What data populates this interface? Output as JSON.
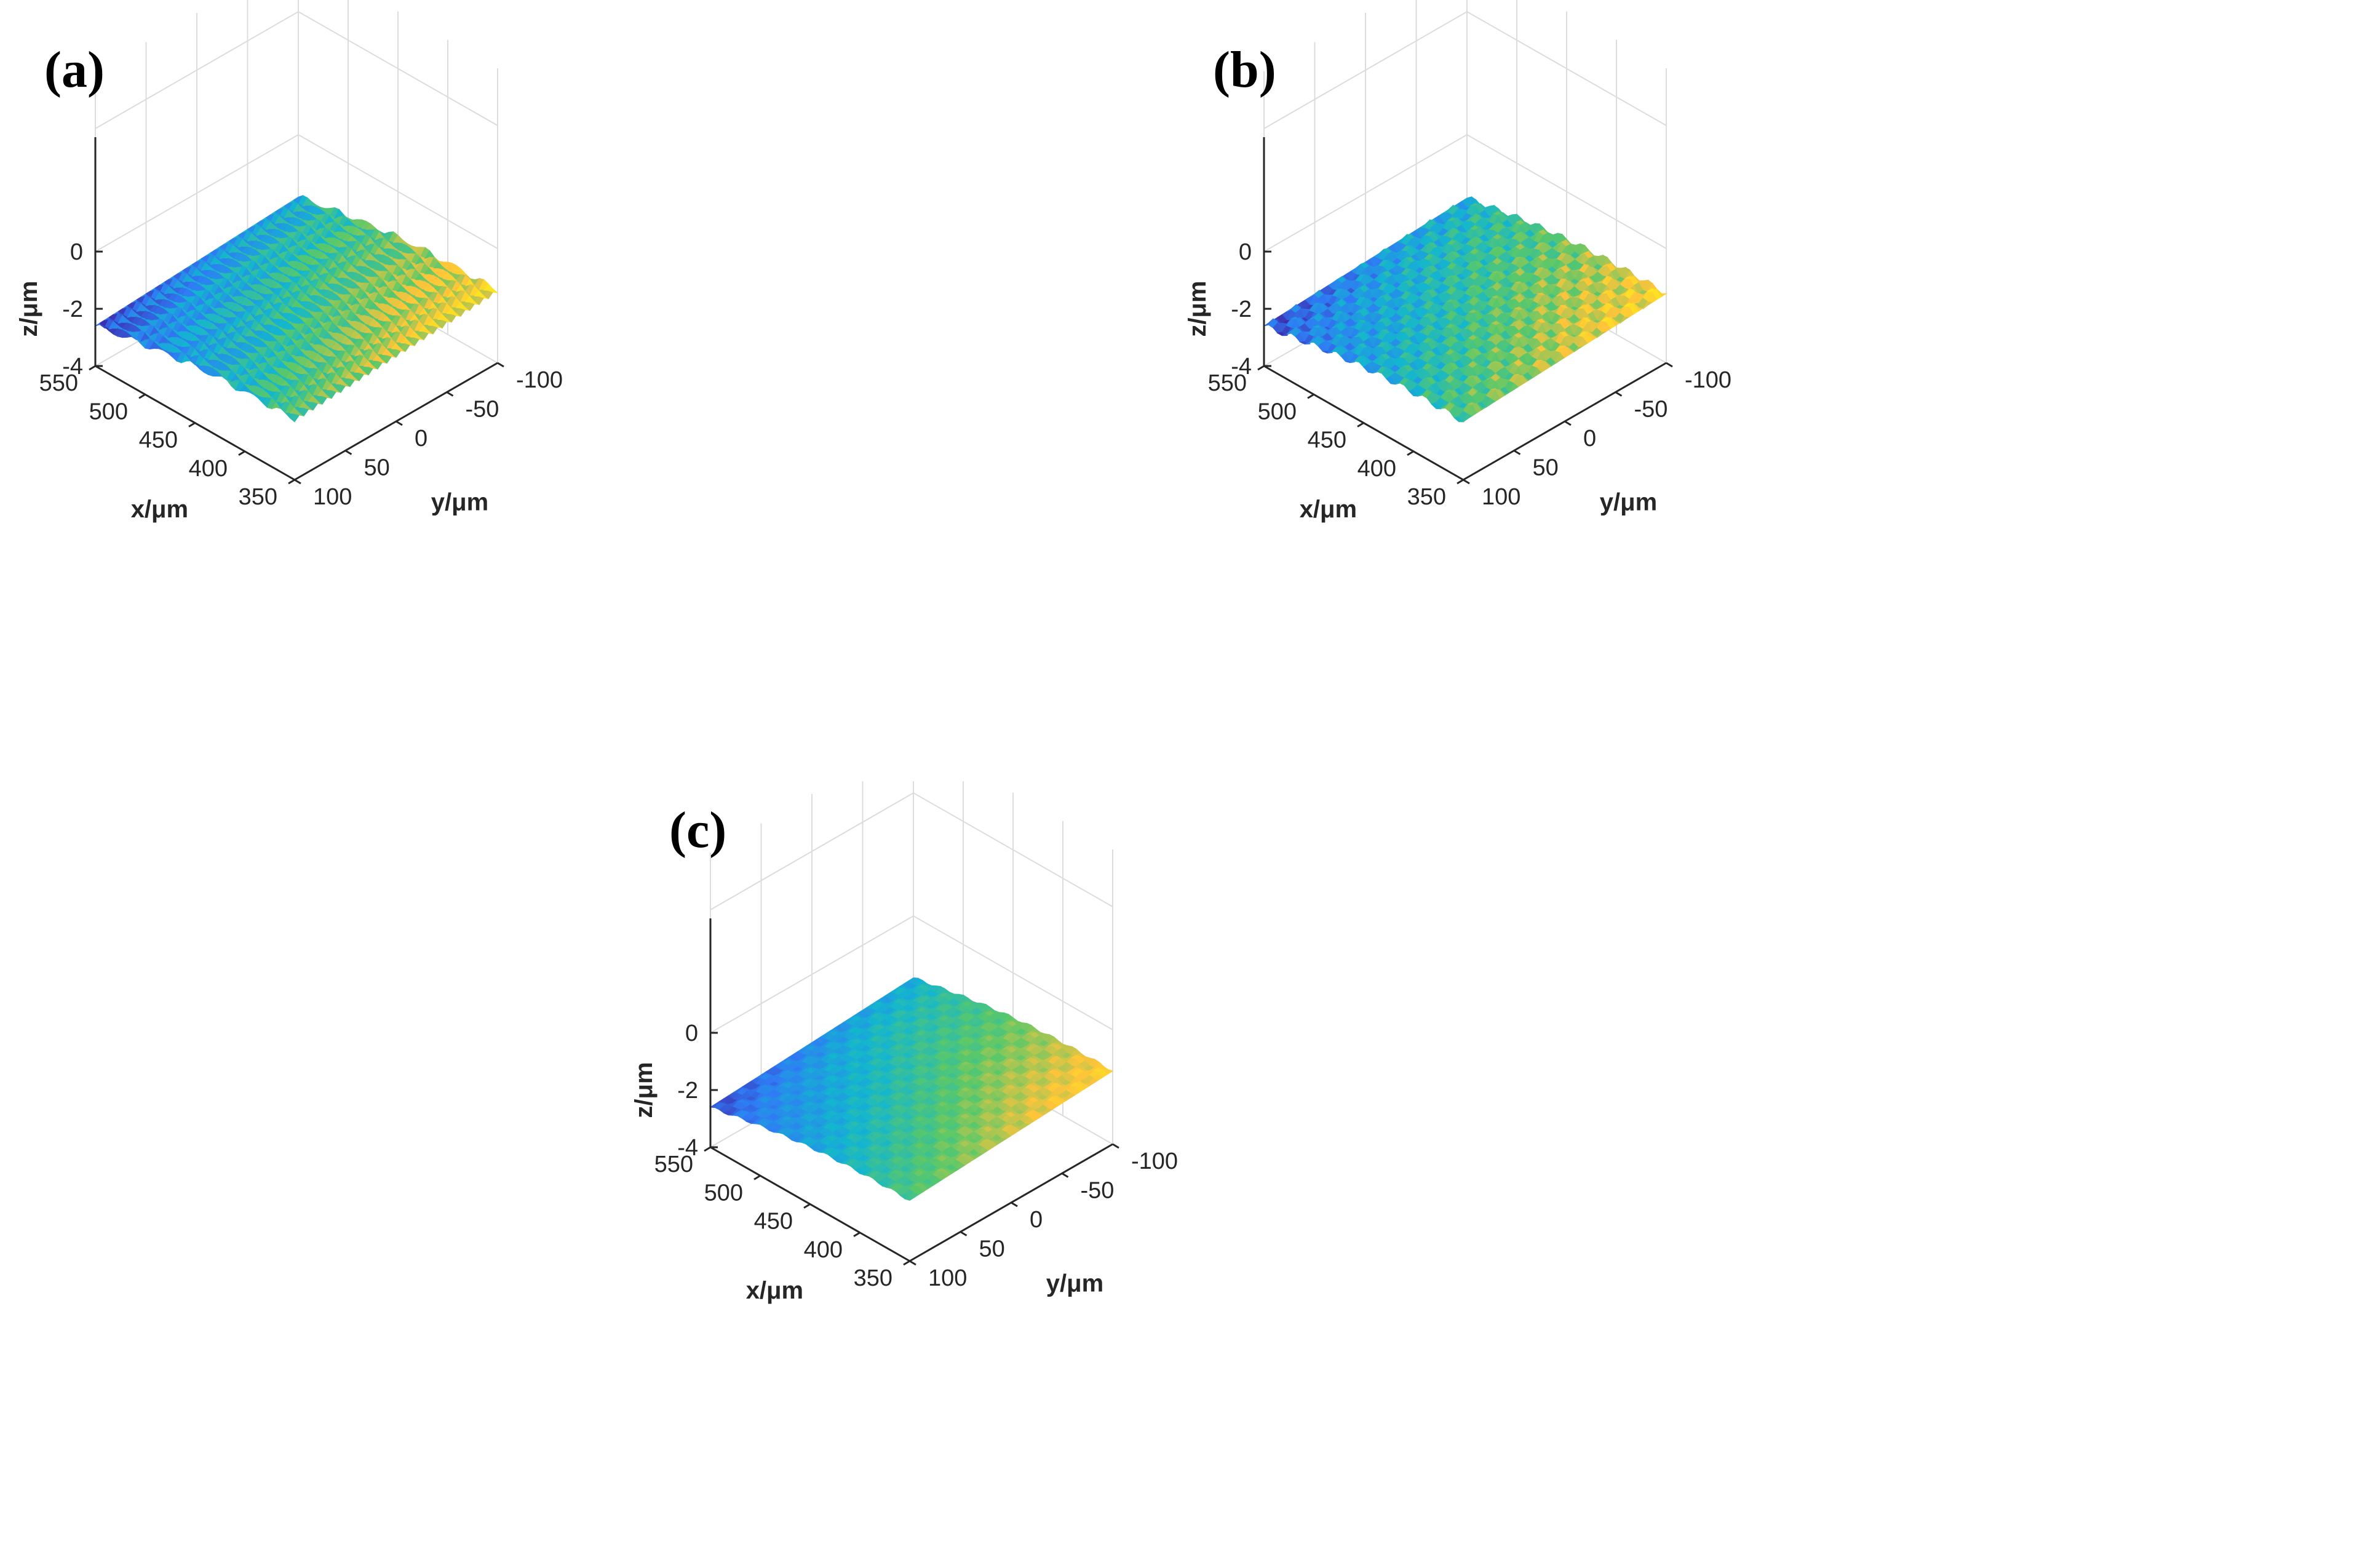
{
  "chart_data": [
    {
      "panel": "(a)",
      "type": "surface",
      "xlabel": "x/μm",
      "ylabel": "y/μm",
      "zlabel": "z/μm",
      "xlim": [
        350,
        550
      ],
      "ylim": [
        -100,
        100
      ],
      "zlim": [
        -4,
        0
      ],
      "xticks": [
        "350",
        "400",
        "450",
        "500",
        "550"
      ],
      "yticks": [
        "100",
        "50",
        "0",
        "-50",
        "-100"
      ],
      "zticks": [
        "0",
        "-2",
        "-4"
      ],
      "grid": true,
      "colormap": "parula",
      "texture": "sinusoidal ridges running along y, wavy along x",
      "wave_amplitude": 0.12,
      "bump_amplitude": 0.0,
      "tilt": 1.2,
      "ripple": 0.25,
      "colors": [
        "#3e26a8",
        "#2f7bf5",
        "#13b6cf",
        "#5ac869",
        "#ffc43a",
        "#f9fb0e"
      ]
    },
    {
      "panel": "(b)",
      "type": "surface",
      "xlabel": "x/μm",
      "ylabel": "y/μm",
      "zlabel": "z/μm",
      "xlim": [
        350,
        550
      ],
      "ylim": [
        -100,
        100
      ],
      "zlim": [
        -4,
        0
      ],
      "xticks": [
        "350",
        "400",
        "450",
        "500",
        "550"
      ],
      "yticks": [
        "100",
        "50",
        "0",
        "-50",
        "-100"
      ],
      "zticks": [
        "0",
        "-2",
        "-4"
      ],
      "grid": true,
      "colormap": "parula",
      "texture": "periodic dimple array",
      "wave_amplitude": 0.0,
      "bump_amplitude": 0.22,
      "tilt": 1.1,
      "ripple": 0.0,
      "colors": [
        "#3e26a8",
        "#2f7bf5",
        "#13b6cf",
        "#5ac869",
        "#ffc43a",
        "#f9fb0e"
      ]
    },
    {
      "panel": "(c)",
      "type": "surface",
      "xlabel": "x/μm",
      "ylabel": "y/μm",
      "zlabel": "z/μm",
      "xlim": [
        350,
        550
      ],
      "ylim": [
        -100,
        100
      ],
      "zlim": [
        -4,
        0
      ],
      "xticks": [
        "350",
        "400",
        "450",
        "500",
        "550"
      ],
      "yticks": [
        "100",
        "50",
        "0",
        "-50",
        "-100"
      ],
      "zticks": [
        "0",
        "-2",
        "-4"
      ],
      "grid": true,
      "colormap": "parula",
      "texture": "dense fine dimple array",
      "wave_amplitude": 0.0,
      "bump_amplitude": 0.1,
      "tilt": 1.25,
      "ripple": 0.0,
      "colors": [
        "#3e26a8",
        "#2f7bf5",
        "#13b6cf",
        "#5ac869",
        "#ffc43a",
        "#f9fb0e"
      ]
    }
  ]
}
